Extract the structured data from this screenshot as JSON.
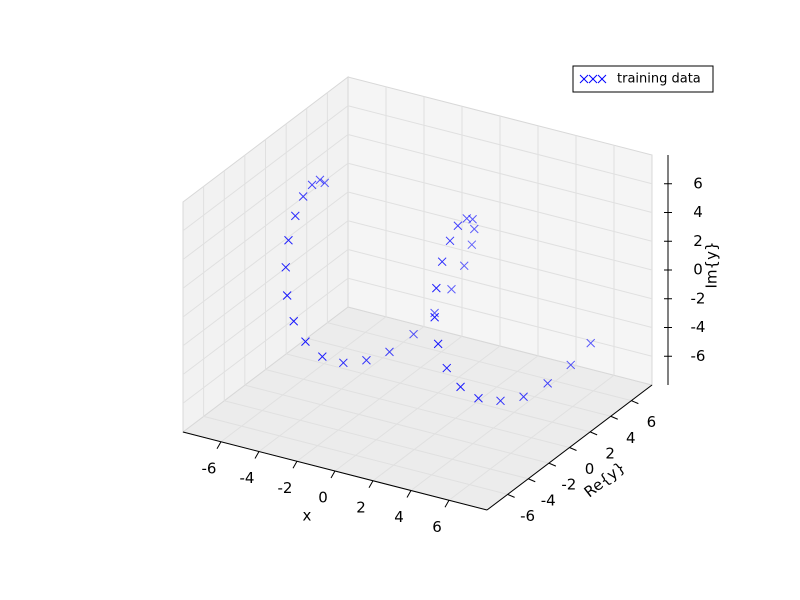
{
  "chart_data": {
    "type": "scatter3d",
    "xlabel": "x",
    "ylabel": "Re{y}",
    "zlabel": "Im{y}",
    "xlim": [
      -8,
      8
    ],
    "ylim": [
      -8,
      8
    ],
    "zlim": [
      -8,
      8
    ],
    "xticks": [
      -6,
      -4,
      -2,
      0,
      2,
      4,
      6
    ],
    "yticks": [
      -6,
      -4,
      -2,
      0,
      2,
      4,
      6
    ],
    "zticks": [
      -6,
      -4,
      -2,
      0,
      2,
      4,
      6
    ],
    "grid": true,
    "legend": "upper right",
    "series": [
      {
        "name": "training data",
        "color": "#0000ff",
        "x": [
          -7,
          -6.6,
          -6.2,
          -5.8,
          -5.4,
          -5,
          -4.6,
          -4.2,
          -3.8,
          -3.4,
          -3,
          -2.6,
          -2.2,
          -1.8,
          -1.4,
          -1,
          -0.6,
          -0.2,
          0.2,
          0.6,
          1,
          1.4,
          1.8,
          2.2,
          2.6,
          3,
          3.4,
          3.8,
          4.2,
          4.6,
          5,
          5.4,
          5.8,
          6.2,
          6.6,
          7
        ],
        "y": [
          3.9,
          2.7,
          1.2,
          -0.4,
          -1.9,
          -3.3,
          -4.3,
          -4.9,
          -5.0,
          -4.6,
          -3.7,
          -2.4,
          -0.9,
          0.6,
          2.2,
          3.5,
          4.4,
          4.9,
          4.9,
          4.4,
          3.5,
          2.2,
          0.6,
          -0.9,
          -2.4,
          -3.7,
          -4.6,
          -5.0,
          -4.9,
          -4.3,
          -3.3,
          -1.9,
          -0.4,
          1.2,
          2.7,
          3.9
        ],
        "z": [
          3.2,
          4.2,
          4.8,
          5.0,
          4.6,
          3.8,
          2.6,
          1.1,
          -0.5,
          -2.0,
          -3.4,
          -4.4,
          -4.9,
          -5.0,
          -4.5,
          -3.6,
          -2.3,
          -0.8,
          0.8,
          2.3,
          3.6,
          4.5,
          5.0,
          4.9,
          4.4,
          3.4,
          2.0,
          0.5,
          -1.1,
          -2.6,
          -3.8,
          -4.6,
          -5.0,
          -4.8,
          -4.2,
          -3.2
        ]
      }
    ]
  }
}
